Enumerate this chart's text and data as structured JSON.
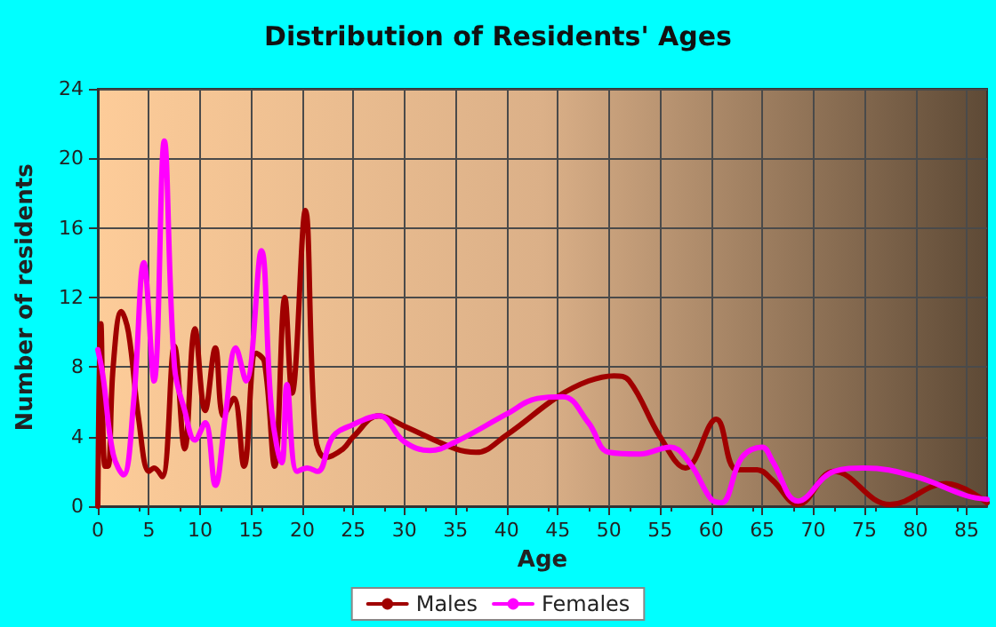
{
  "chart_data": {
    "type": "line",
    "title": "Distribution of Residents' Ages",
    "xlabel": "Age",
    "ylabel": "Number of residents",
    "xlim": [
      0,
      87
    ],
    "xticks": [
      0,
      5,
      10,
      15,
      20,
      25,
      30,
      35,
      40,
      45,
      50,
      55,
      60,
      65,
      70,
      75,
      80,
      85
    ],
    "ylim": [
      0,
      24
    ],
    "yticks": [
      0,
      4,
      8,
      12,
      16,
      20,
      24
    ],
    "grid": true,
    "legend": "bottom",
    "marker": "none",
    "series": [
      {
        "name": "Males",
        "color": "#a00000",
        "x": [
          0,
          0.3,
          0.7,
          1,
          1.5,
          2.3,
          3,
          4,
          5,
          5.5,
          6.3,
          7.5,
          8.5,
          9.5,
          10.5,
          11.5,
          12.3,
          13.3,
          14.3,
          15.5,
          16.3,
          17.3,
          18.3,
          19,
          20.3,
          21.3,
          22.3,
          24,
          25,
          27.5,
          30,
          35,
          37,
          40,
          45,
          48,
          50.5,
          52,
          55,
          57.5,
          60.5,
          62.5,
          64.5,
          66,
          68.5,
          72,
          77.5,
          83,
          87
        ],
        "values": [
          0,
          10.5,
          2.3,
          2.3,
          8,
          11.2,
          10,
          5,
          2,
          2.2,
          1.7,
          9.2,
          3.3,
          10.2,
          5.5,
          9.1,
          5.2,
          6.2,
          2.3,
          8.8,
          8.3,
          2.3,
          12,
          6.5,
          17,
          4,
          2.8,
          3.3,
          4,
          5.2,
          4.6,
          3.3,
          3.1,
          4.1,
          6.3,
          7.2,
          7.5,
          7.2,
          4,
          2.2,
          5,
          2.1,
          2.1,
          1.5,
          0.1,
          2,
          0.1,
          1.3,
          0.2
        ]
      },
      {
        "name": "Females",
        "color": "#ff00ff",
        "x": [
          0,
          0.5,
          1.5,
          2.5,
          3.5,
          4.5,
          5.5,
          6.5,
          7.5,
          8.5,
          9.5,
          10.5,
          11.5,
          12.5,
          13.5,
          14.5,
          16,
          17,
          18,
          18.5,
          19.5,
          20.5,
          21.5,
          23,
          25,
          27.5,
          30,
          32.5,
          35,
          40,
          43,
          45.5,
          48,
          50,
          53,
          56,
          58,
          60,
          61,
          63,
          65,
          66,
          68.5,
          72,
          75,
          80,
          85,
          87
        ],
        "values": [
          9,
          7.5,
          3,
          1.8,
          6,
          14,
          7.2,
          21,
          8,
          5.5,
          3.8,
          4.8,
          1.2,
          5.3,
          9.1,
          7.2,
          14.7,
          5.5,
          2.5,
          7,
          2,
          2.2,
          2,
          4,
          4.7,
          5.2,
          3.7,
          3.2,
          3.7,
          5.3,
          6.2,
          6.3,
          4.8,
          3.1,
          3,
          3.4,
          2.4,
          0.4,
          0.2,
          2.8,
          3.4,
          2.6,
          0.3,
          2,
          2.2,
          1.7,
          0.6,
          0.4
        ]
      }
    ]
  }
}
